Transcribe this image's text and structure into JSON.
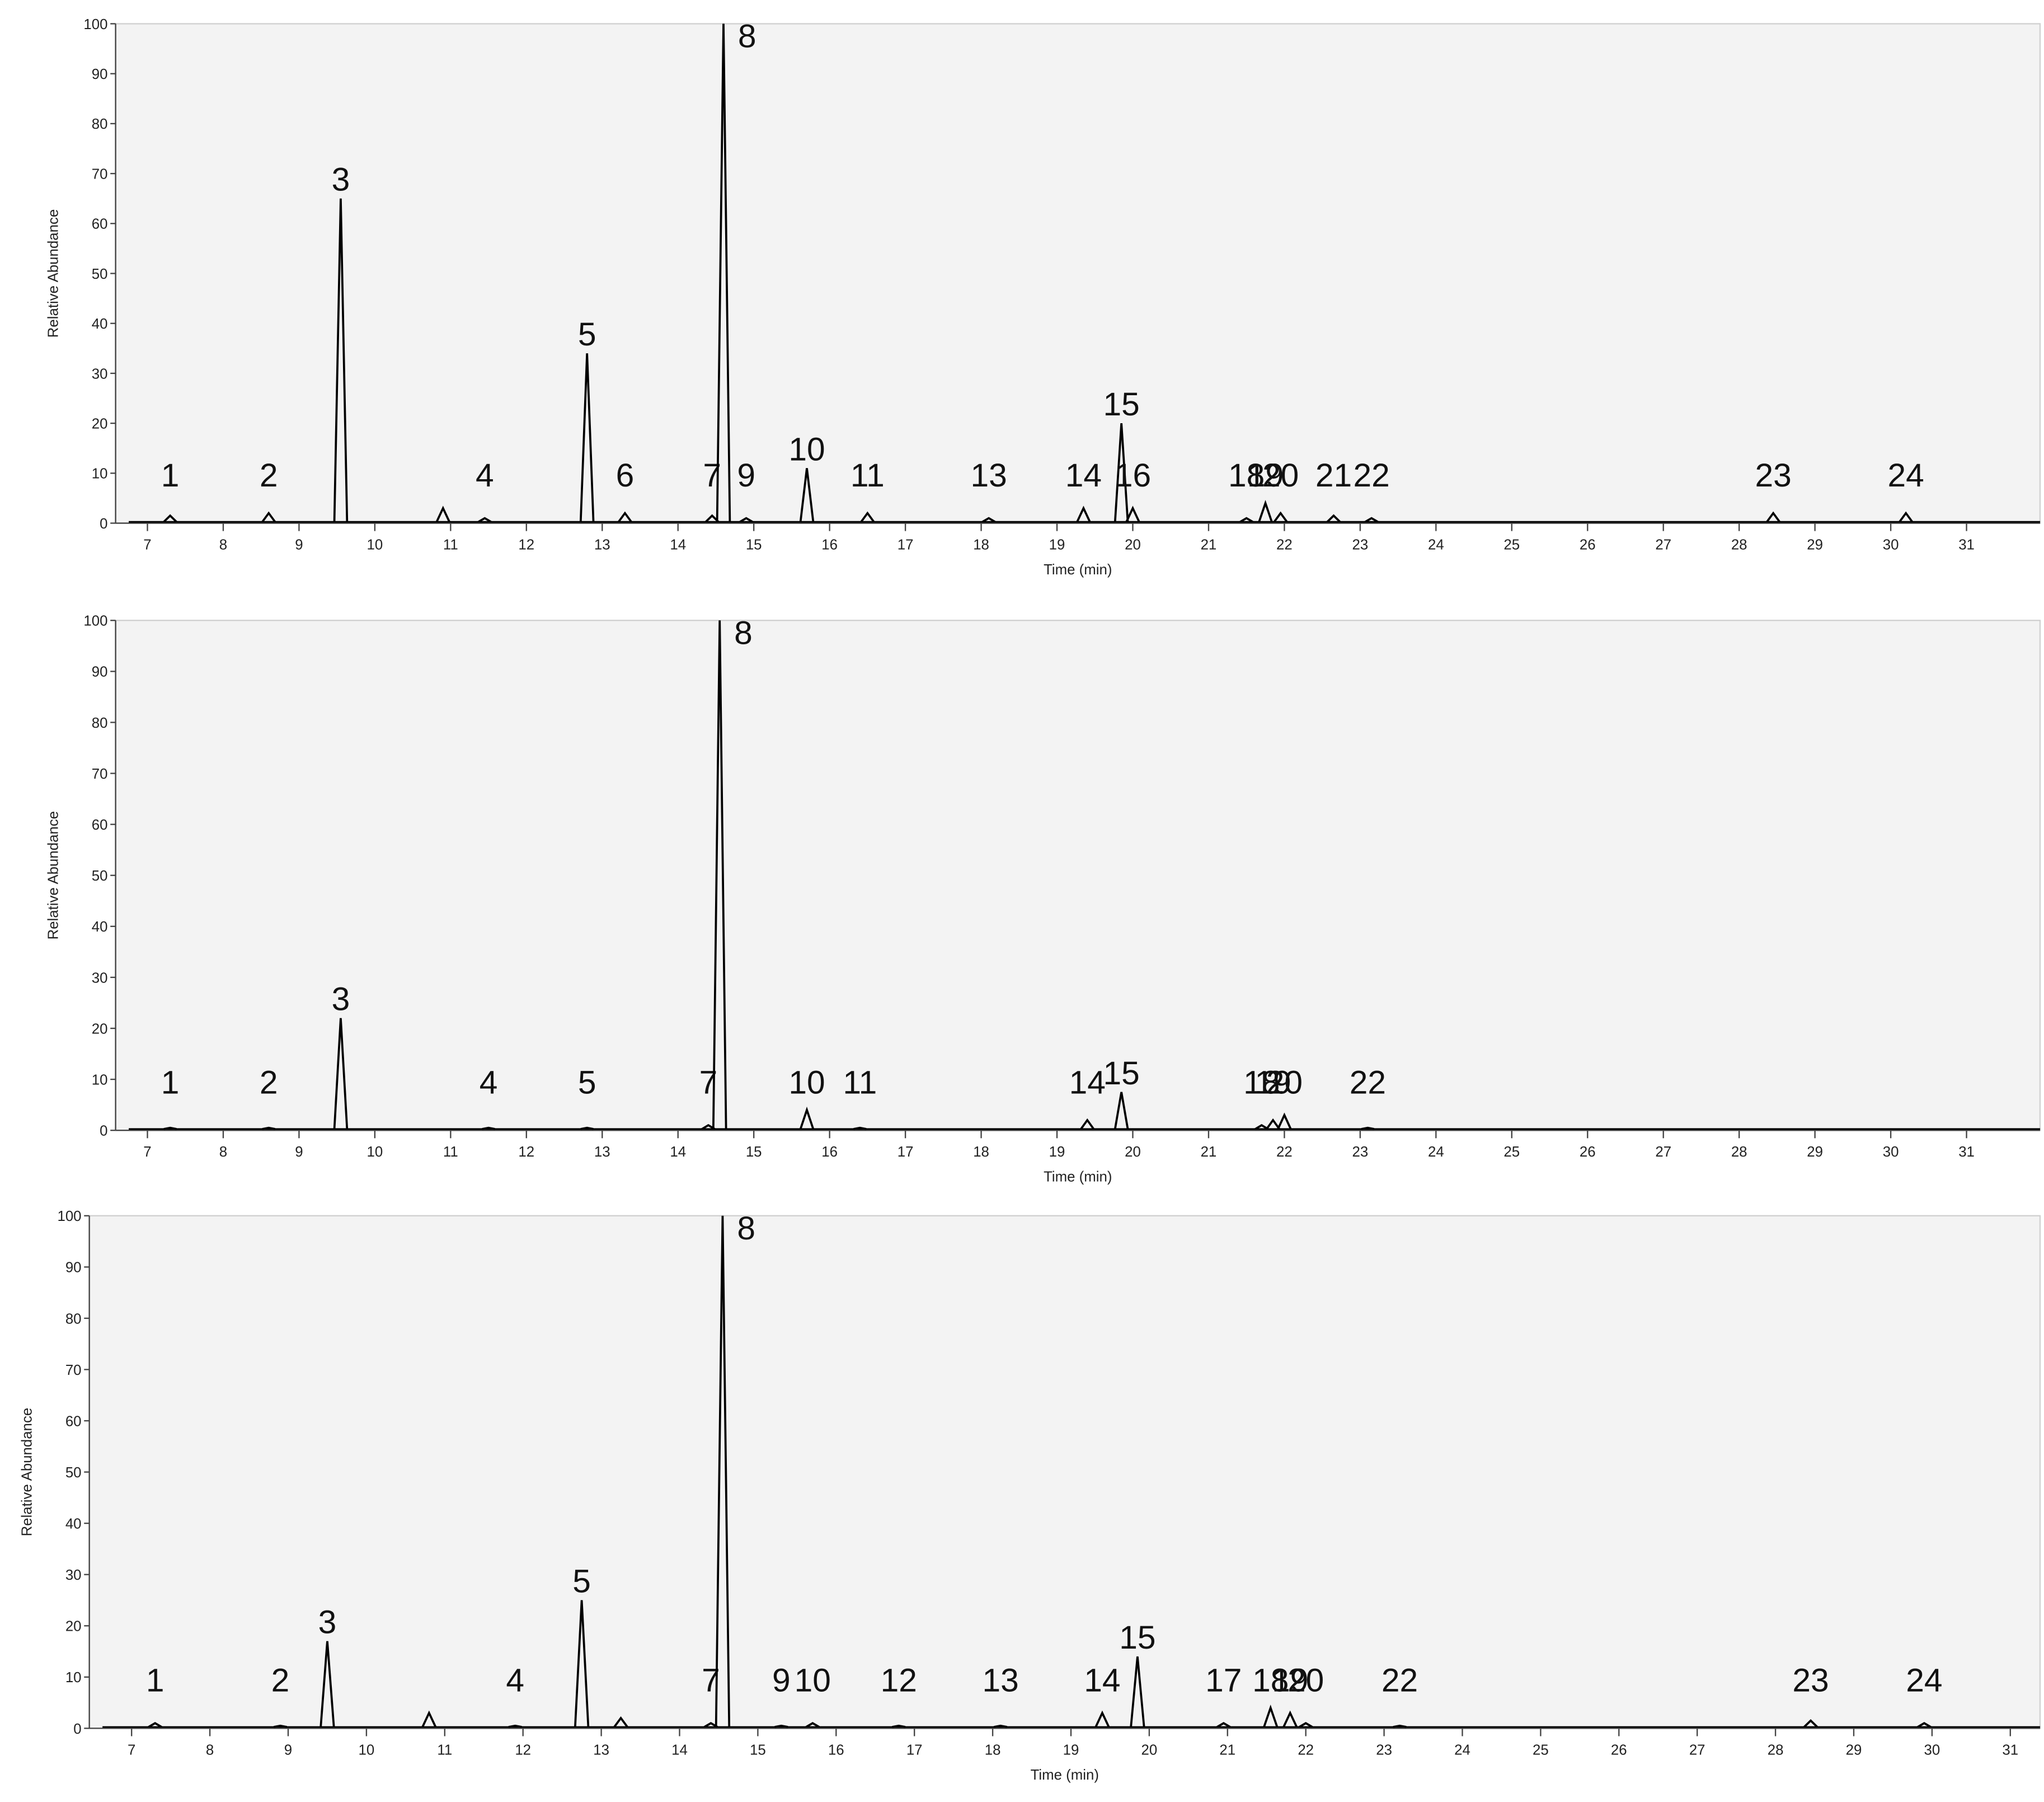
{
  "chart_data": [
    {
      "type": "line",
      "ylabel": "Relative Abundance",
      "xlabel": "Time (min)",
      "color": "#000000",
      "xlim": [
        6.58,
        31.97
      ],
      "ylim": [
        0,
        100
      ],
      "xticks": [
        7,
        8,
        9,
        10,
        11,
        12,
        13,
        14,
        15,
        16,
        17,
        18,
        19,
        20,
        21,
        22,
        23,
        24,
        25,
        26,
        27,
        28,
        29,
        30,
        31
      ],
      "yticks": [
        0,
        10,
        20,
        30,
        40,
        50,
        60,
        70,
        80,
        90,
        100
      ],
      "peak_labels": [
        "1",
        "2",
        "3",
        null,
        "4",
        "5",
        "6",
        "7",
        "8",
        "9",
        "10",
        "11",
        "13",
        "14",
        "15",
        "16",
        "18",
        "19",
        "20",
        "21",
        "22",
        "23",
        "24"
      ],
      "x": [
        7.3,
        8.6,
        9.55,
        10.9,
        11.45,
        12.8,
        13.3,
        14.45,
        14.6,
        14.9,
        15.7,
        16.5,
        18.1,
        19.35,
        19.85,
        20.0,
        21.5,
        21.75,
        21.95,
        22.65,
        23.15,
        28.45,
        30.2
      ],
      "values": [
        1.5,
        2,
        65,
        3,
        1,
        34,
        2,
        1.5,
        100,
        1,
        11,
        2,
        1,
        3,
        20,
        3,
        1,
        4,
        2,
        1.5,
        1,
        2,
        2
      ]
    },
    {
      "type": "line",
      "ylabel": "Relative Abundance",
      "xlabel": "Time (min)",
      "color": "#000000",
      "xlim": [
        6.58,
        31.97
      ],
      "ylim": [
        0,
        100
      ],
      "xticks": [
        7,
        8,
        9,
        10,
        11,
        12,
        13,
        14,
        15,
        16,
        17,
        18,
        19,
        20,
        21,
        22,
        23,
        24,
        25,
        26,
        27,
        28,
        29,
        30,
        31
      ],
      "yticks": [
        0,
        10,
        20,
        30,
        40,
        50,
        60,
        70,
        80,
        90,
        100
      ],
      "peak_labels": [
        "1",
        "2",
        "3",
        "4",
        "5",
        "7",
        "8",
        "10",
        "11",
        "14",
        "15",
        "18",
        "19",
        "20",
        "22"
      ],
      "x": [
        7.3,
        8.6,
        9.55,
        11.5,
        12.8,
        14.4,
        14.55,
        15.7,
        16.4,
        19.4,
        19.85,
        21.7,
        21.85,
        22.0,
        23.1
      ],
      "values": [
        0.5,
        0.5,
        22,
        0.5,
        0.5,
        1,
        100,
        4,
        0.5,
        2,
        7.5,
        1,
        2,
        3,
        0.5
      ]
    },
    {
      "type": "line",
      "ylabel": "Relative Abundance",
      "xlabel": "Time (min)",
      "color": "#000000",
      "xlim": [
        6.46,
        31.38
      ],
      "ylim": [
        0,
        100
      ],
      "xticks": [
        7,
        8,
        9,
        10,
        11,
        12,
        13,
        14,
        15,
        16,
        17,
        18,
        19,
        20,
        21,
        22,
        23,
        24,
        25,
        26,
        27,
        28,
        29,
        30,
        31
      ],
      "yticks": [
        0,
        10,
        20,
        30,
        40,
        50,
        60,
        70,
        80,
        90,
        100
      ],
      "peak_labels": [
        "1",
        "2",
        "3",
        null,
        "4",
        "5",
        null,
        "7",
        "8",
        "9",
        "10",
        "12",
        "13",
        "14",
        "15",
        "17",
        "18",
        "19",
        "20",
        "22",
        "23",
        "24"
      ],
      "x": [
        7.3,
        8.9,
        9.5,
        10.8,
        11.9,
        12.75,
        13.25,
        14.4,
        14.55,
        15.3,
        15.7,
        16.8,
        18.1,
        19.4,
        19.85,
        20.95,
        21.55,
        21.8,
        22.0,
        23.2,
        28.45,
        29.9
      ],
      "values": [
        1,
        0.5,
        17,
        3,
        0.5,
        25,
        2,
        1,
        100,
        0.5,
        1,
        0.5,
        0.5,
        3,
        14,
        1,
        4,
        3,
        1,
        0.5,
        1.5,
        1
      ]
    }
  ]
}
